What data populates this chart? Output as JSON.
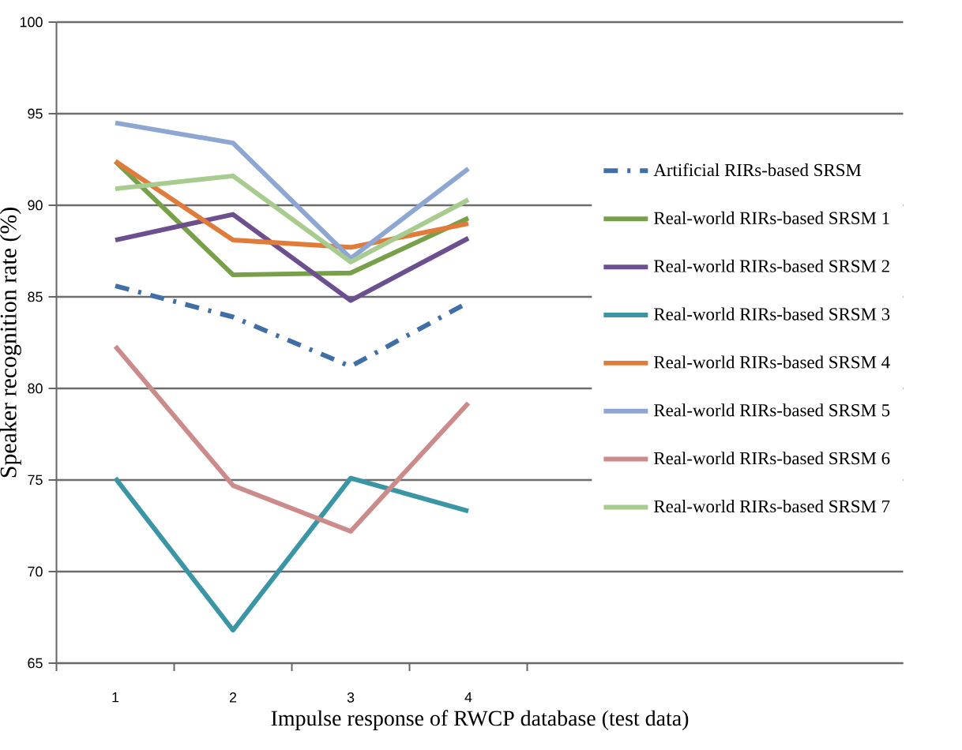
{
  "chart_data": {
    "type": "line",
    "xlabel": "Impulse response of RWCP database (test data)",
    "ylabel": "Speaker recognition rate (%)",
    "categories": [
      "1",
      "2",
      "3",
      "4"
    ],
    "series": [
      {
        "name": "Artificial RIRs-based SRSM",
        "color": "#3f6fa6",
        "line_style": "dashdot",
        "values": [
          85.6,
          83.9,
          81.2,
          84.7
        ]
      },
      {
        "name": "Real-world RIRs-based SRSM 1",
        "color": "#77a049",
        "values": [
          92.4,
          86.2,
          86.3,
          89.3
        ]
      },
      {
        "name": "Real-world RIRs-based SRSM 2",
        "color": "#6b4f8f",
        "values": [
          88.1,
          89.5,
          84.8,
          88.2
        ]
      },
      {
        "name": "Real-world RIRs-based SRSM 3",
        "color": "#3a96a5",
        "values": [
          75.1,
          66.8,
          75.1,
          73.3
        ]
      },
      {
        "name": "Real-world RIRs-based SRSM 4",
        "color": "#e07b3a",
        "values": [
          92.4,
          88.1,
          87.7,
          89.0
        ]
      },
      {
        "name": "Real-world RIRs-based SRSM 5",
        "color": "#8ea7d2",
        "values": [
          94.5,
          93.4,
          87.1,
          92.0
        ]
      },
      {
        "name": "Real-world RIRs-based SRSM 6",
        "color": "#cc8b8b",
        "values": [
          82.3,
          74.7,
          72.2,
          79.2
        ]
      },
      {
        "name": "Real-world RIRs-based SRSM 7",
        "color": "#a8cc8f",
        "values": [
          90.9,
          91.6,
          86.9,
          90.3
        ]
      }
    ],
    "ylim": [
      65,
      100
    ],
    "yticks": [
      65,
      70,
      75,
      80,
      85,
      90,
      95,
      100
    ],
    "grid": "y",
    "legend": "right",
    "line_style": "solid",
    "marker": "none"
  }
}
